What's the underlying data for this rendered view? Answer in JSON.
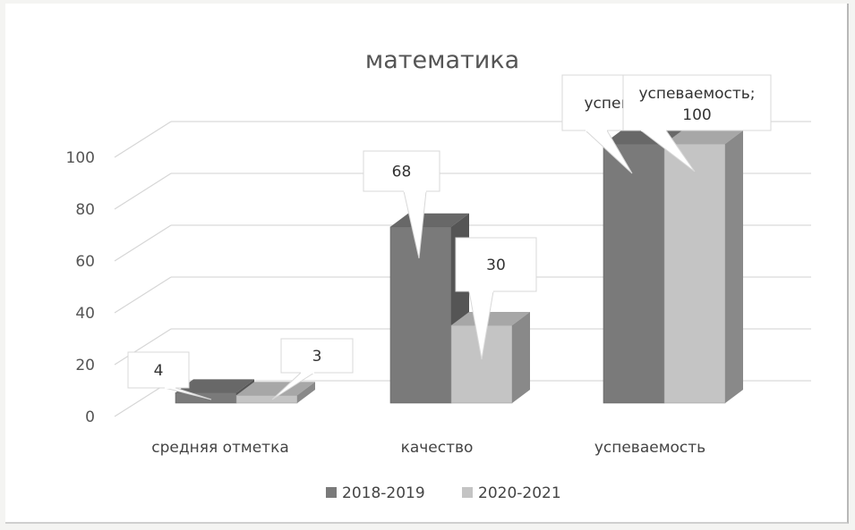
{
  "chart_data": {
    "type": "bar",
    "title": "математика",
    "categories": [
      "средняя отметка",
      "качество",
      "успеваемость"
    ],
    "series": [
      {
        "name": "2018-2019",
        "color": "#7a7a7a",
        "values": [
          4,
          68,
          100
        ],
        "labels": [
          "4",
          "68",
          "успев"
        ]
      },
      {
        "name": "2020-2021",
        "color": "#c4c4c4",
        "values": [
          3,
          30,
          100
        ],
        "labels": [
          "3",
          "30",
          "успеваемость;\n100"
        ]
      }
    ],
    "yticks": [
      0,
      20,
      40,
      60,
      80,
      100
    ],
    "ylim": [
      0,
      100
    ],
    "grid": true,
    "legend_position": "bottom",
    "style": "3d clustered column"
  }
}
